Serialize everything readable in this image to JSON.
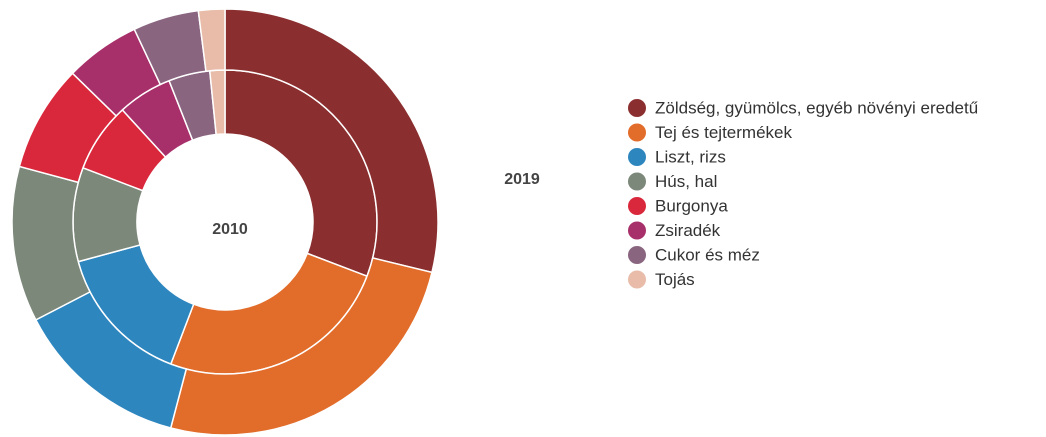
{
  "chart_data": {
    "type": "donut",
    "categories": [
      "Zöldség, gyümölcs, egyéb növényi eredetű",
      "Tej és tejtermékek",
      "Liszt, rizs",
      "Hús, hal",
      "Burgonya",
      "Zsiradék",
      "Cukor és méz",
      "Tojás"
    ],
    "colors": [
      "#8b2e2f",
      "#e26c29",
      "#2e86bf",
      "#7c887a",
      "#d9283c",
      "#a8306a",
      "#8a6580",
      "#e8bca9"
    ],
    "series": [
      {
        "name": "2010",
        "values": [
          30.8,
          25,
          15,
          10,
          7.4,
          5.8,
          4.4,
          1.6
        ]
      },
      {
        "name": "2019",
        "values": [
          28.8,
          25.3,
          13.3,
          11.8,
          8.1,
          5.7,
          5,
          2
        ]
      }
    ]
  }
}
